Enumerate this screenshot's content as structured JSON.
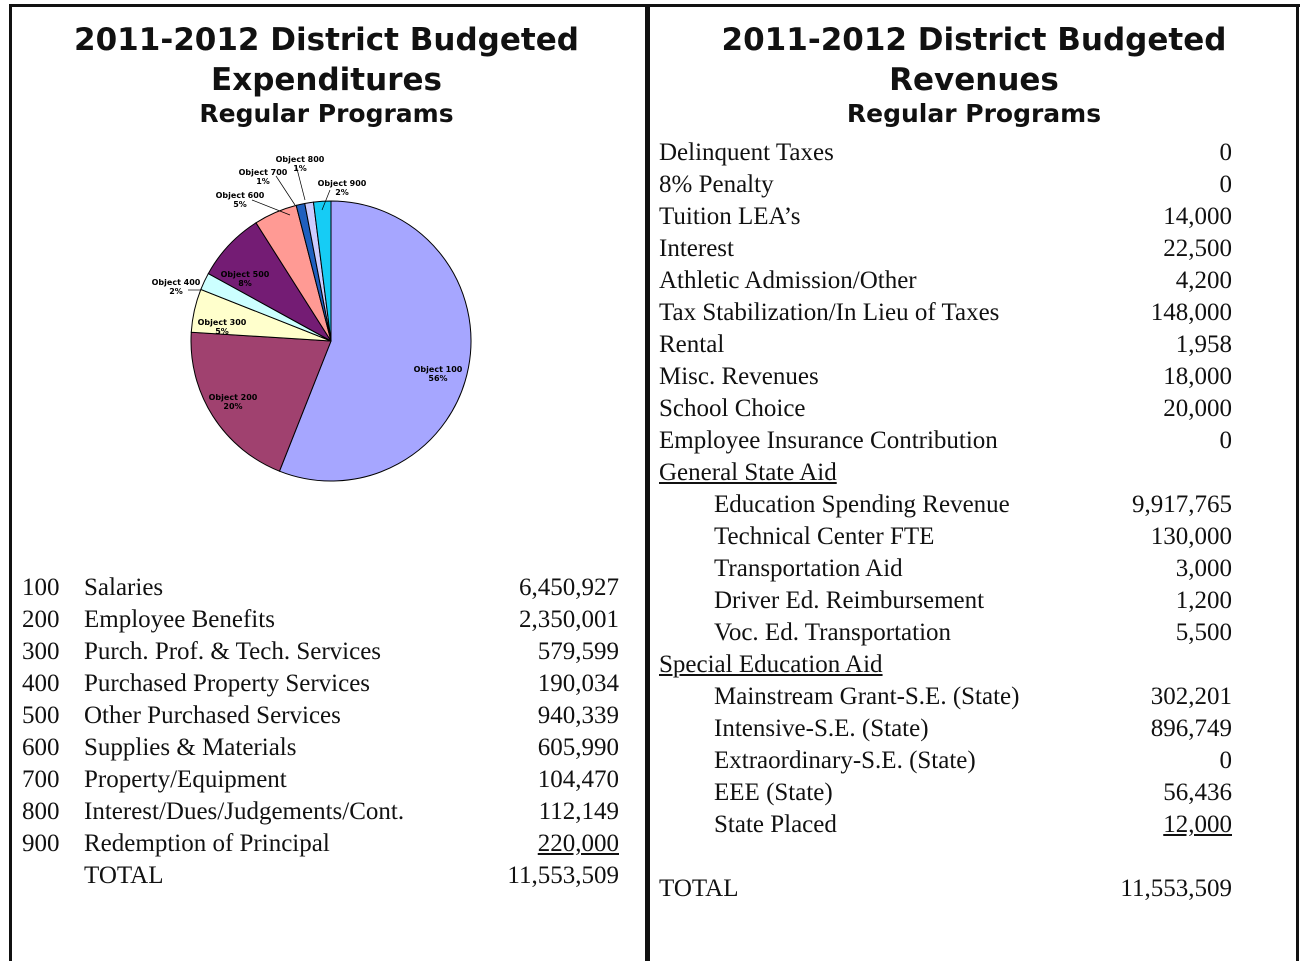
{
  "left": {
    "title": [
      "2011-2012 District Budgeted",
      "Expenditures"
    ],
    "subtitle": "Regular Programs",
    "chart_data": {
      "type": "pie",
      "categories": [
        "Object 100",
        "Object 200",
        "Object 300",
        "Object 400",
        "Object 500",
        "Object 600",
        "Object 700",
        "Object 800",
        "Object 900"
      ],
      "values": [
        56,
        20,
        5,
        2,
        8,
        5,
        1,
        1,
        2
      ],
      "value_labels": [
        "56%",
        "20%",
        "5%",
        "2%",
        "8%",
        "5%",
        "1%",
        "1%",
        "2%"
      ],
      "colors": [
        "#a6a6ff",
        "#a0416f",
        "#ffffcc",
        "#ccffff",
        "#741c74",
        "#ff9a94",
        "#1f5fbf",
        "#ccccff",
        "#16ccf5"
      ]
    },
    "rows": [
      [
        "100",
        "Salaries",
        "6,450,927"
      ],
      [
        "200",
        "Employee Benefits",
        "2,350,001"
      ],
      [
        "300",
        "Purch. Prof. & Tech. Services",
        "579,599"
      ],
      [
        "400",
        "Purchased Property Services",
        "190,034"
      ],
      [
        "500",
        "Other Purchased Services",
        "940,339"
      ],
      [
        "600",
        "Supplies & Materials",
        "605,990"
      ],
      [
        "700",
        "Property/Equipment",
        "104,470"
      ],
      [
        "800",
        "Interest/Dues/Judgements/Cont.",
        "112,149"
      ],
      [
        "900",
        "Redemption of Principal",
        "220,000"
      ]
    ],
    "total": {
      "label": "TOTAL",
      "value": "11,553,509"
    }
  },
  "right": {
    "title": [
      "2011-2012 District Budgeted",
      "Revenues"
    ],
    "subtitle": "Regular Programs",
    "items": [
      [
        "Delinquent Taxes",
        "0"
      ],
      [
        "8% Penalty",
        "0"
      ],
      [
        "Tuition LEA’s",
        "14,000"
      ],
      [
        "Interest",
        "22,500"
      ],
      [
        "Athletic Admission/Other",
        "4,200"
      ],
      [
        "Tax Stabilization/In Lieu of Taxes",
        "148,000"
      ],
      [
        "Rental",
        "1,958"
      ],
      [
        "Misc. Revenues",
        "18,000"
      ],
      [
        "School Choice",
        "20,000"
      ],
      [
        "Employee Insurance Contribution",
        "0"
      ]
    ],
    "sections": [
      {
        "heading": "General State Aid",
        "items": [
          [
            "Education Spending Revenue",
            "9,917,765"
          ],
          [
            "Technical Center FTE",
            "130,000"
          ],
          [
            "Transportation Aid",
            "3,000"
          ],
          [
            "Driver Ed. Reimbursement",
            "1,200"
          ],
          [
            "Voc. Ed. Transportation",
            "5,500"
          ]
        ]
      },
      {
        "heading": "Special Education Aid",
        "items": [
          [
            "Mainstream Grant-S.E. (State)",
            "302,201"
          ],
          [
            "Intensive-S.E. (State)",
            "896,749"
          ],
          [
            "Extraordinary-S.E. (State)",
            "0"
          ],
          [
            "EEE (State)",
            "56,436"
          ],
          [
            "State Placed",
            "12,000"
          ]
        ]
      }
    ],
    "total": {
      "label": "TOTAL",
      "value": "11,553,509"
    }
  }
}
